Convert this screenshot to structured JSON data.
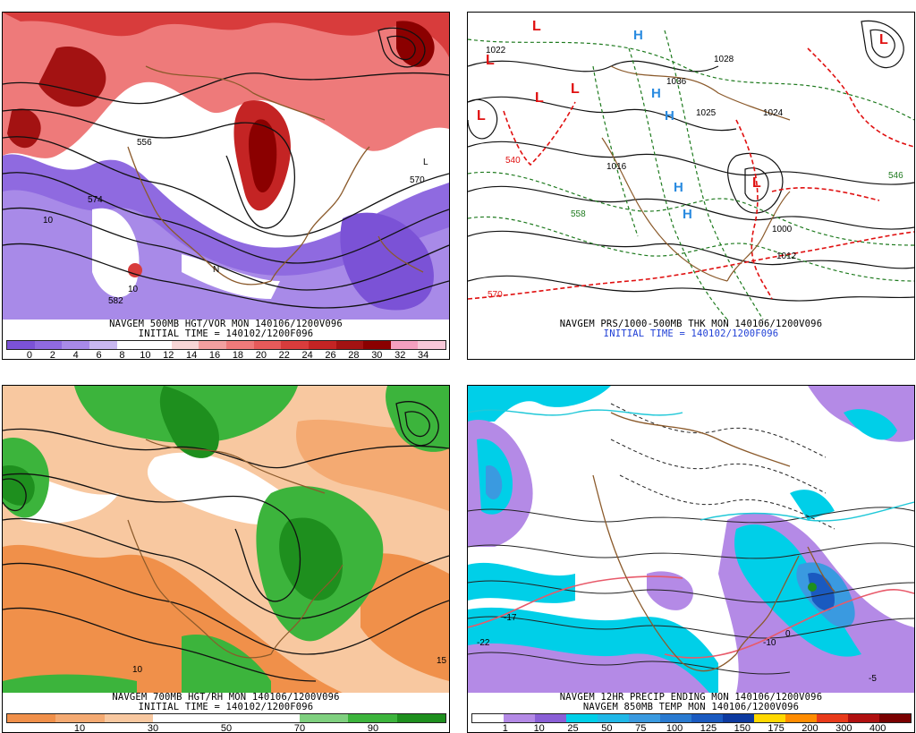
{
  "panels": [
    {
      "id": "vort",
      "title": "NAVGEM 500MB HGT/VOR MON 140106/1200V096",
      "subtitle": "INITIAL TIME = 140102/1200F096",
      "subtitle_color": "#000000",
      "colorbar": {
        "colors": [
          "#7b52d6",
          "#8f6ae0",
          "#a88ae8",
          "#c9b8f0",
          "#ffffff",
          "#ffffff",
          "#f7d5d5",
          "#f2a0a0",
          "#ee7a7a",
          "#e65a5a",
          "#d83c3c",
          "#c42424",
          "#a31212",
          "#8b0000",
          "#f5a0c0",
          "#f8c8d8"
        ],
        "labels": [
          "0",
          "2",
          "4",
          "6",
          "8",
          "10",
          "12",
          "14",
          "16",
          "18",
          "20",
          "22",
          "24",
          "26",
          "28",
          "30",
          "32",
          "34"
        ]
      },
      "map_labels": [
        "574",
        "556",
        "570",
        "582",
        "10",
        "10",
        "N",
        "L"
      ]
    },
    {
      "id": "prs",
      "title": "NAVGEM PRS/1000-500MB THK MON 140106/1200V096",
      "subtitle": "INITIAL TIME = 140102/1200F096",
      "subtitle_color": "#1f3fd6",
      "map_labels": [
        "570",
        "540",
        "546",
        "558",
        "1036",
        "1025",
        "1024",
        "1028",
        "1022",
        "1012",
        "1000",
        "1016"
      ],
      "high_markers": [
        "H",
        "H",
        "H",
        "H",
        "H"
      ],
      "low_markers": [
        "L",
        "L",
        "L",
        "L",
        "L",
        "L",
        "L"
      ]
    },
    {
      "id": "rh",
      "title": "NAVGEM 700MB HGT/RH MON 140106/1200V096",
      "subtitle": "INITIAL TIME = 140102/1200F096",
      "subtitle_color": "#000000",
      "colorbar": {
        "colors": [
          "#f0904a",
          "#f4aa72",
          "#f8c8a0",
          "#ffffff",
          "#ffffff",
          "#ffffff",
          "#7fd07f",
          "#3cb43c",
          "#1e8f1e"
        ],
        "labels": [
          "10",
          "30",
          "50",
          "70",
          "90"
        ]
      },
      "map_labels": [
        "10",
        "15"
      ]
    },
    {
      "id": "precip",
      "title": "NAVGEM 12HR PRECIP ENDING MON 140106/1200V096",
      "subtitle": "NAVGEM 850MB TEMP MON 140106/1200V096",
      "subtitle_color": "#000000",
      "colorbar": {
        "colors": [
          "#ffffff",
          "#b48ae6",
          "#8a5fd6",
          "#00cfe8",
          "#20b8e8",
          "#3a9ae0",
          "#2a7ad0",
          "#1a5ac0",
          "#0d3aa0",
          "#ffd800",
          "#ff8c00",
          "#e83a1a",
          "#b01010",
          "#7a0000"
        ],
        "labels": [
          "1",
          "10",
          "25",
          "50",
          "75",
          "100",
          "125",
          "150",
          "175",
          "200",
          "300",
          "400"
        ]
      },
      "map_labels": [
        "-22",
        "-17",
        "0",
        "-10",
        "-5"
      ]
    }
  ]
}
